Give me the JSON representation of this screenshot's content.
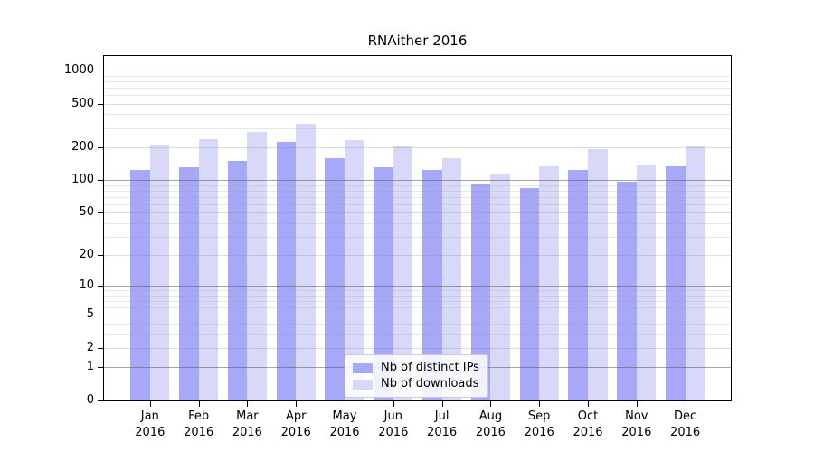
{
  "figure": {
    "background": "#ffffff"
  },
  "chart_data": {
    "type": "bar",
    "title": "RNAither 2016",
    "categories": [
      "Jan 2016",
      "Feb 2016",
      "Mar 2016",
      "Apr 2016",
      "May 2016",
      "Jun 2016",
      "Jul 2016",
      "Aug 2016",
      "Sep 2016",
      "Oct 2016",
      "Nov 2016",
      "Dec 2016"
    ],
    "series": [
      {
        "name": "Nb of distinct IPs",
        "color": "#a8a8f8",
        "values": [
          125,
          130,
          150,
          225,
          160,
          131,
          123,
          92,
          85,
          124,
          97,
          135
        ]
      },
      {
        "name": "Nb of downloads",
        "color": "#d8d8f8",
        "values": [
          210,
          238,
          275,
          330,
          232,
          205,
          160,
          112,
          133,
          191,
          140,
          202
        ]
      }
    ],
    "xlabel": "",
    "ylabel": "",
    "yscale": "log1p",
    "ylim": [
      0,
      1000
    ],
    "yticks_labeled": [
      0,
      1,
      2,
      5,
      10,
      20,
      50,
      100,
      200,
      500,
      1000
    ],
    "yticks_minor": [
      3,
      4,
      6,
      7,
      8,
      9,
      30,
      40,
      60,
      70,
      80,
      90,
      300,
      400,
      600,
      700,
      800,
      900
    ],
    "grid": "on",
    "legend": {
      "position": "inside-bottom-center"
    }
  }
}
